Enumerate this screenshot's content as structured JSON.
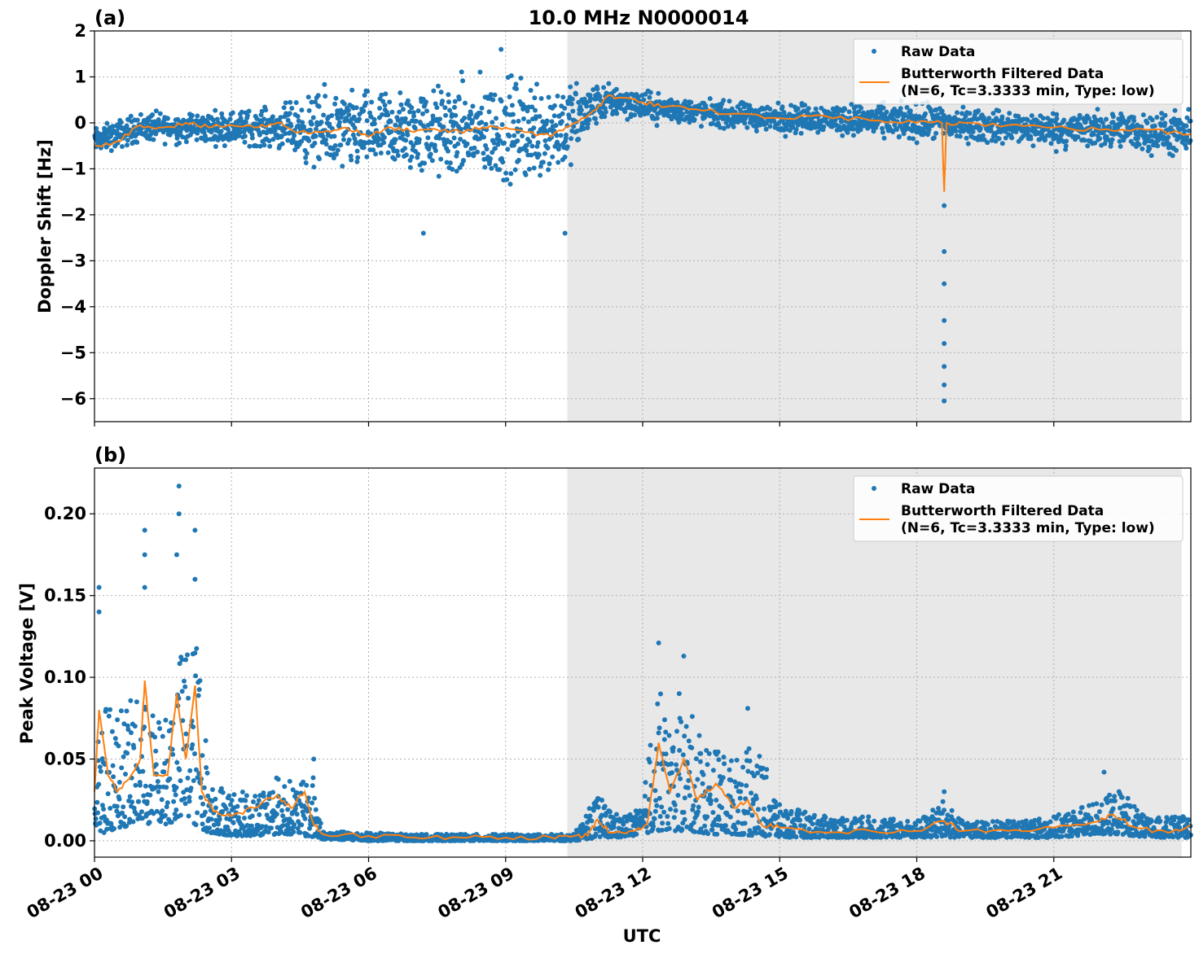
{
  "figure": {
    "title": "10.0 MHz N0000014",
    "xlabel": "UTC"
  },
  "chart_data": [
    {
      "type": "scatter",
      "panel_label": "(a)",
      "ylabel": "Doppler Shift [Hz]",
      "ylim": [
        -6.5,
        2.0
      ],
      "yticks": [
        2,
        1,
        0,
        -1,
        -2,
        -3,
        -4,
        -5,
        -6
      ],
      "ytick_labels": [
        "2",
        "1",
        "0",
        "−1",
        "−2",
        "−3",
        "−4",
        "−5",
        "−6"
      ],
      "xlim_hours": [
        0,
        24
      ],
      "xticks_hours": [
        0,
        3,
        6,
        9,
        12,
        15,
        18,
        21
      ],
      "xtick_labels": [
        "08-23 00",
        "08-23 03",
        "08-23 06",
        "08-23 09",
        "08-23 12",
        "08-23 15",
        "08-23 18",
        "08-23 21"
      ],
      "shaded_region_hours": [
        10.35,
        23.8
      ],
      "grid": true,
      "legend_position": "top-right",
      "series": [
        {
          "name": "Raw Data",
          "kind": "points",
          "color": "#1f77b4",
          "envelope": {
            "x": [
              0,
              1,
              2,
              3,
              4,
              5,
              6,
              7,
              8,
              9,
              10,
              10.5,
              11,
              11.5,
              12,
              13,
              14,
              15,
              16,
              17,
              18,
              18.5,
              19,
              20,
              21,
              22,
              23,
              24
            ],
            "center": [
              -0.4,
              -0.1,
              -0.1,
              -0.1,
              -0.1,
              -0.2,
              -0.2,
              -0.2,
              -0.2,
              -0.2,
              -0.1,
              0.0,
              0.4,
              0.5,
              0.35,
              0.25,
              0.15,
              0.1,
              0.1,
              0.05,
              0.0,
              0.0,
              -0.05,
              -0.1,
              -0.15,
              -0.15,
              -0.2,
              -0.3
            ],
            "spread": [
              0.4,
              0.45,
              0.45,
              0.5,
              0.6,
              1.2,
              1.2,
              1.3,
              1.5,
              1.6,
              1.6,
              1.2,
              0.6,
              0.5,
              0.45,
              0.4,
              0.4,
              0.45,
              0.45,
              0.5,
              0.55,
              0.55,
              0.5,
              0.5,
              0.55,
              0.55,
              0.6,
              0.7
            ]
          },
          "outliers": [
            {
              "x": 7.2,
              "y": -2.4
            },
            {
              "x": 8.9,
              "y": 1.6
            },
            {
              "x": 10.3,
              "y": -2.4
            },
            {
              "x": 18.6,
              "y": -1.8
            },
            {
              "x": 18.6,
              "y": -2.8
            },
            {
              "x": 18.6,
              "y": -3.5
            },
            {
              "x": 18.6,
              "y": -4.3
            },
            {
              "x": 18.6,
              "y": -4.8
            },
            {
              "x": 18.6,
              "y": -5.3
            },
            {
              "x": 18.6,
              "y": -5.7
            },
            {
              "x": 18.6,
              "y": -6.05
            }
          ]
        },
        {
          "name": "Butterworth Filtered Data",
          "name_line2": "(N=6, Tc=3.3333 min, Type: low)",
          "kind": "line",
          "color": "#ff7f0e",
          "x": [
            0,
            0.5,
            1,
            1.5,
            2,
            2.5,
            3,
            3.5,
            4,
            4.5,
            5,
            5.5,
            6,
            6.5,
            7,
            7.5,
            8,
            8.5,
            9,
            9.5,
            10,
            10.5,
            11,
            11.25,
            11.5,
            12,
            12.5,
            13,
            14,
            15,
            16,
            17,
            18,
            18.55,
            18.6,
            18.65,
            19,
            20,
            21,
            22,
            23,
            24
          ],
          "y": [
            -0.5,
            -0.4,
            -0.05,
            -0.1,
            0.0,
            -0.1,
            -0.05,
            -0.1,
            0.0,
            -0.2,
            -0.2,
            -0.1,
            -0.3,
            -0.1,
            -0.2,
            -0.15,
            -0.2,
            -0.1,
            -0.1,
            -0.2,
            -0.3,
            0.0,
            0.3,
            0.6,
            0.55,
            0.45,
            0.35,
            0.3,
            0.2,
            0.1,
            0.15,
            0.05,
            0.0,
            0.0,
            -1.5,
            0.0,
            0.0,
            -0.05,
            -0.1,
            -0.15,
            -0.15,
            -0.25
          ]
        }
      ]
    },
    {
      "type": "scatter",
      "panel_label": "(b)",
      "ylabel": "Peak Voltage [V]",
      "ylim": [
        -0.01,
        0.228
      ],
      "yticks": [
        0.0,
        0.05,
        0.1,
        0.15,
        0.2
      ],
      "ytick_labels": [
        "0.00",
        "0.05",
        "0.10",
        "0.15",
        "0.20"
      ],
      "xlim_hours": [
        0,
        24
      ],
      "xticks_hours": [
        0,
        3,
        6,
        9,
        12,
        15,
        18,
        21
      ],
      "xtick_labels": [
        "08-23 00",
        "08-23 03",
        "08-23 06",
        "08-23 09",
        "08-23 12",
        "08-23 15",
        "08-23 18",
        "08-23 21"
      ],
      "shaded_region_hours": [
        10.35,
        23.8
      ],
      "grid": true,
      "legend_position": "top-right",
      "series": [
        {
          "name": "Raw Data",
          "kind": "points",
          "color": "#1f77b4",
          "envelope": {
            "x": [
              0,
              0.5,
              1,
              1.5,
              2,
              2.3,
              2.5,
              3,
              3.5,
              4,
              4.5,
              4.8,
              5,
              6,
              7,
              8,
              9,
              10,
              10.5,
              11,
              11.5,
              12,
              12.3,
              12.6,
              13,
              13.5,
              14,
              14.5,
              15,
              16,
              17,
              18,
              18.6,
              19,
              20,
              21,
              22,
              22.5,
              23,
              24
            ],
            "low": [
              0.002,
              0.008,
              0.01,
              0.01,
              0.012,
              0.008,
              0.005,
              0.003,
              0.003,
              0.004,
              0.004,
              0.001,
              0.001,
              0.0,
              0.0,
              0.0,
              0.0,
              0.0,
              0.0,
              0.002,
              0.002,
              0.004,
              0.006,
              0.006,
              0.006,
              0.004,
              0.004,
              0.003,
              0.002,
              0.002,
              0.002,
              0.002,
              0.002,
              0.002,
              0.002,
              0.002,
              0.004,
              0.004,
              0.002,
              0.002
            ],
            "high": [
              0.09,
              0.08,
              0.09,
              0.07,
              0.13,
              0.12,
              0.04,
              0.03,
              0.03,
              0.04,
              0.035,
              0.04,
              0.006,
              0.005,
              0.004,
              0.004,
              0.004,
              0.004,
              0.004,
              0.028,
              0.015,
              0.02,
              0.1,
              0.07,
              0.08,
              0.06,
              0.05,
              0.06,
              0.022,
              0.015,
              0.015,
              0.012,
              0.025,
              0.012,
              0.012,
              0.015,
              0.025,
              0.032,
              0.014,
              0.015
            ]
          },
          "outliers": [
            {
              "x": 0.1,
              "y": 0.155
            },
            {
              "x": 0.1,
              "y": 0.14
            },
            {
              "x": 1.1,
              "y": 0.19
            },
            {
              "x": 1.1,
              "y": 0.175
            },
            {
              "x": 1.1,
              "y": 0.155
            },
            {
              "x": 1.85,
              "y": 0.217
            },
            {
              "x": 1.85,
              "y": 0.2
            },
            {
              "x": 1.8,
              "y": 0.175
            },
            {
              "x": 2.2,
              "y": 0.19
            },
            {
              "x": 2.2,
              "y": 0.16
            },
            {
              "x": 12.35,
              "y": 0.121
            },
            {
              "x": 12.9,
              "y": 0.113
            },
            {
              "x": 12.8,
              "y": 0.09
            },
            {
              "x": 14.3,
              "y": 0.081
            },
            {
              "x": 4.8,
              "y": 0.05
            },
            {
              "x": 22.1,
              "y": 0.042
            },
            {
              "x": 18.6,
              "y": 0.03
            }
          ]
        },
        {
          "name": "Butterworth Filtered Data",
          "name_line2": "(N=6, Tc=3.3333 min, Type: low)",
          "kind": "line",
          "color": "#ff7f0e",
          "x": [
            0,
            0.1,
            0.3,
            0.5,
            0.8,
            1.0,
            1.1,
            1.3,
            1.6,
            1.8,
            2.0,
            2.2,
            2.35,
            2.6,
            3.0,
            3.5,
            4.0,
            4.3,
            4.6,
            4.8,
            5.0,
            6,
            7,
            8,
            9,
            10,
            10.5,
            10.8,
            11.0,
            11.3,
            11.8,
            12.1,
            12.35,
            12.6,
            12.9,
            13.2,
            13.6,
            14.0,
            14.3,
            14.6,
            15,
            16,
            17,
            18,
            18.6,
            19,
            20,
            21,
            22,
            22.3,
            22.8,
            23.5,
            24
          ],
          "y": [
            0.03,
            0.08,
            0.04,
            0.03,
            0.04,
            0.05,
            0.098,
            0.04,
            0.04,
            0.09,
            0.05,
            0.095,
            0.03,
            0.018,
            0.015,
            0.02,
            0.028,
            0.02,
            0.03,
            0.01,
            0.004,
            0.003,
            0.002,
            0.002,
            0.002,
            0.002,
            0.003,
            0.003,
            0.013,
            0.005,
            0.006,
            0.01,
            0.06,
            0.03,
            0.05,
            0.025,
            0.035,
            0.02,
            0.025,
            0.01,
            0.008,
            0.005,
            0.006,
            0.006,
            0.012,
            0.006,
            0.006,
            0.008,
            0.012,
            0.016,
            0.008,
            0.005,
            0.01
          ]
        }
      ]
    }
  ]
}
